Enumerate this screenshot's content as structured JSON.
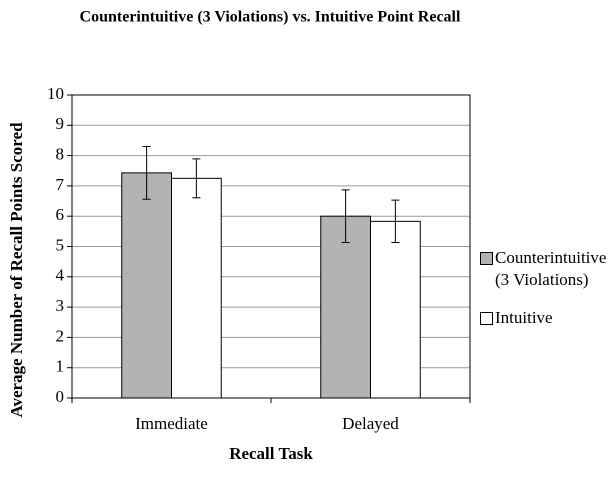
{
  "chart_data": {
    "type": "bar",
    "title": "Counterintuitive (3 Violations) vs. Intuitive Point Recall",
    "xlabel": "Recall Task",
    "ylabel": "Average Number of Recall Points Scored",
    "categories": [
      "Immediate",
      "Delayed"
    ],
    "series": [
      {
        "name": "Counterintuitive (3 Violations)",
        "color": "#b3b3b6",
        "values": [
          7.43,
          6.0
        ],
        "errors": [
          0.87,
          0.87
        ]
      },
      {
        "name": "Intuitive",
        "color": "#ffffff",
        "values": [
          7.25,
          5.83
        ],
        "errors": [
          0.64,
          0.7
        ]
      }
    ],
    "ylim": [
      0,
      10
    ],
    "yticks": [
      0,
      1,
      2,
      3,
      4,
      5,
      6,
      7,
      8,
      9,
      10
    ],
    "grid": true,
    "legend": "right"
  }
}
